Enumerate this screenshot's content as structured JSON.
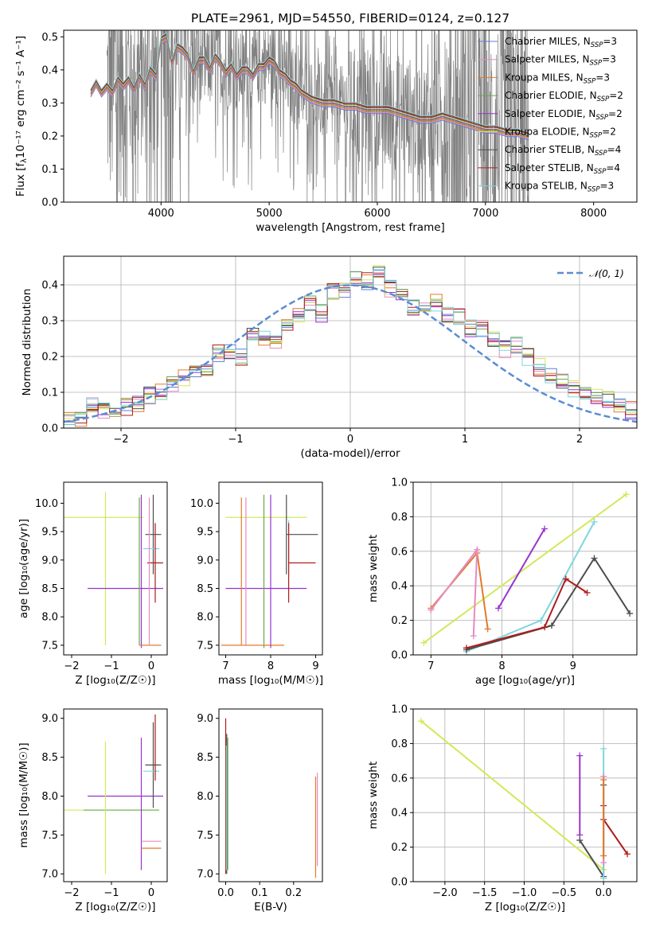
{
  "figure_title": "PLATE=2961, MJD=54550, FIBERID=0124, z=0.127",
  "colors": {
    "chabrier_miles": "#5b7fd6",
    "salpeter_miles": "#e78ac3",
    "kroupa_miles": "#e07b2c",
    "chabrier_elodie": "#6aa84f",
    "salpeter_elodie": "#9933cc",
    "kroupa_elodie": "#d4e85a",
    "chabrier_stelib": "#4d4d4d",
    "salpeter_stelib": "#b01c1c",
    "kroupa_stelib": "#7fd6dd",
    "spectrum": "#808080",
    "gaussian": "#5b8bd6"
  },
  "legend": [
    {
      "label": "Chabrier MILES, N",
      "sub": "SSP",
      "tail": "=3",
      "color_key": "chabrier_miles"
    },
    {
      "label": "Salpeter MILES, N",
      "sub": "SSP",
      "tail": "=3",
      "color_key": "salpeter_miles"
    },
    {
      "label": "Kroupa MILES, N",
      "sub": "SSP",
      "tail": "=3",
      "color_key": "kroupa_miles"
    },
    {
      "label": "Chabrier ELODIE, N",
      "sub": "SSP",
      "tail": "=2",
      "color_key": "chabrier_elodie"
    },
    {
      "label": "Salpeter ELODIE, N",
      "sub": "SSP",
      "tail": "=2",
      "color_key": "salpeter_elodie"
    },
    {
      "label": "Kroupa ELODIE, N",
      "sub": "SSP",
      "tail": "=2",
      "color_key": "kroupa_elodie"
    },
    {
      "label": "Chabrier STELIB, N",
      "sub": "SSP",
      "tail": "=4",
      "color_key": "chabrier_stelib"
    },
    {
      "label": "Salpeter STELIB, N",
      "sub": "SSP",
      "tail": "=4",
      "color_key": "salpeter_stelib"
    },
    {
      "label": "Kroupa STELIB, N",
      "sub": "SSP",
      "tail": "=3",
      "color_key": "kroupa_stelib"
    }
  ],
  "chart_data": [
    {
      "id": "spectrum",
      "type": "line",
      "xlabel": "wavelength [Angstrom, rest frame]",
      "ylabel": "Flux [f",
      "ylabel_sub": "λ",
      "ylabel_tail": "10⁻¹⁷ erg cm⁻² s⁻¹ A⁻¹]",
      "xlim": [
        3100,
        8400
      ],
      "ylim": [
        0,
        0.52
      ],
      "xticks": [
        4000,
        5000,
        6000,
        7000,
        8000
      ],
      "yticks": [
        0.0,
        0.1,
        0.2,
        0.3,
        0.4,
        0.5
      ],
      "grid": false,
      "legend_position": "top-right",
      "model_continuum": {
        "x": [
          3350,
          3400,
          3450,
          3500,
          3550,
          3600,
          3650,
          3700,
          3750,
          3800,
          3850,
          3900,
          3950,
          4000,
          4050,
          4100,
          4150,
          4200,
          4250,
          4300,
          4350,
          4400,
          4450,
          4500,
          4550,
          4600,
          4650,
          4700,
          4750,
          4800,
          4850,
          4900,
          4950,
          5000,
          5050,
          5100,
          5150,
          5200,
          5250,
          5300,
          5350,
          5400,
          5500,
          5600,
          5700,
          5800,
          5900,
          6000,
          6100,
          6200,
          6300,
          6400,
          6500,
          6600,
          6700,
          6800,
          6900,
          7000,
          7100,
          7200,
          7300,
          7400
        ],
        "y": [
          0.33,
          0.36,
          0.33,
          0.35,
          0.33,
          0.37,
          0.35,
          0.37,
          0.34,
          0.38,
          0.35,
          0.4,
          0.38,
          0.49,
          0.5,
          0.42,
          0.47,
          0.46,
          0.44,
          0.39,
          0.43,
          0.43,
          0.4,
          0.44,
          0.42,
          0.39,
          0.41,
          0.38,
          0.4,
          0.4,
          0.38,
          0.41,
          0.41,
          0.43,
          0.42,
          0.39,
          0.38,
          0.36,
          0.35,
          0.33,
          0.32,
          0.31,
          0.3,
          0.3,
          0.29,
          0.29,
          0.28,
          0.28,
          0.28,
          0.27,
          0.26,
          0.25,
          0.25,
          0.26,
          0.25,
          0.24,
          0.23,
          0.22,
          0.22,
          0.21,
          0.21,
          0.2
        ]
      }
    },
    {
      "id": "residuals",
      "type": "line",
      "xlabel": "(data-model)/error",
      "ylabel": "Normed distribution",
      "xlim": [
        -2.5,
        2.5
      ],
      "ylim": [
        0,
        0.48
      ],
      "xticks": [
        -2,
        -1,
        0,
        1,
        2
      ],
      "yticks": [
        0.0,
        0.1,
        0.2,
        0.3,
        0.4
      ],
      "grid": true,
      "legend": "𝒩(0, 1)",
      "legend_position": "top-right",
      "bin_width": 0.1,
      "bin_start": -2.5,
      "hist_base": [
        0.02,
        0.03,
        0.06,
        0.05,
        0.05,
        0.06,
        0.07,
        0.09,
        0.1,
        0.12,
        0.14,
        0.15,
        0.17,
        0.21,
        0.21,
        0.2,
        0.27,
        0.25,
        0.24,
        0.28,
        0.32,
        0.35,
        0.32,
        0.38,
        0.38,
        0.42,
        0.41,
        0.43,
        0.39,
        0.38,
        0.34,
        0.33,
        0.35,
        0.32,
        0.31,
        0.28,
        0.28,
        0.25,
        0.22,
        0.23,
        0.2,
        0.17,
        0.15,
        0.13,
        0.11,
        0.1,
        0.09,
        0.08,
        0.06,
        0.05
      ],
      "gaussian": {
        "mean": 0,
        "sigma": 1
      }
    },
    {
      "id": "age_vs_Z",
      "type": "scatter",
      "xlabel": "Z [log₁₀(Z/Z☉)]",
      "ylabel": "age  [log₁₀(age/yr)]",
      "xlim": [
        -2.2,
        0.4
      ],
      "ylim": [
        7.33,
        10.37
      ],
      "xticks": [
        -2,
        -1,
        0
      ],
      "yticks": [
        7.5,
        8.0,
        8.5,
        9.0,
        9.5,
        10.0
      ],
      "grid": false,
      "errorbars": [
        {
          "x": -0.2,
          "y": 9.75,
          "xerr": [
            2.0,
            0.0
          ],
          "yerr": [
            0.0,
            0.0
          ],
          "color_key": "kroupa_elodie"
        },
        {
          "x": -1.15,
          "y": 8.8,
          "xerr": [
            0.0,
            0.0
          ],
          "yerr": [
            1.3,
            1.4
          ],
          "color_key": "kroupa_elodie"
        },
        {
          "x": -0.6,
          "y": 8.5,
          "xerr": [
            1.0,
            0.9
          ],
          "yerr": [
            0.0,
            0.0
          ],
          "color_key": "salpeter_elodie"
        },
        {
          "x": -0.25,
          "y": 8.8,
          "xerr": [
            0.0,
            0.0
          ],
          "yerr": [
            1.35,
            1.35
          ],
          "color_key": "salpeter_elodie"
        },
        {
          "x": -0.3,
          "y": 8.8,
          "xerr": [
            0.0,
            0.0
          ],
          "yerr": [
            1.3,
            1.3
          ],
          "color_key": "chabrier_elodie"
        },
        {
          "x": 0.0,
          "y": 7.5,
          "xerr": [
            0.3,
            0.25
          ],
          "yerr": [
            0.0,
            0.0
          ],
          "color_key": "kroupa_miles"
        },
        {
          "x": 0.05,
          "y": 9.45,
          "xerr": [
            0.2,
            0.2
          ],
          "yerr": [
            0.7,
            0.7
          ],
          "color_key": "chabrier_stelib"
        },
        {
          "x": 0.0,
          "y": 9.2,
          "xerr": [
            0.2,
            0.2
          ],
          "yerr": [
            0.0,
            0.0
          ],
          "color_key": "kroupa_stelib"
        },
        {
          "x": 0.1,
          "y": 8.95,
          "xerr": [
            0.2,
            0.2
          ],
          "yerr": [
            0.7,
            0.7
          ],
          "color_key": "salpeter_stelib"
        },
        {
          "x": -0.05,
          "y": 8.8,
          "xerr": [
            0.0,
            0.0
          ],
          "yerr": [
            1.3,
            1.3
          ],
          "color_key": "salpeter_miles"
        }
      ]
    },
    {
      "id": "age_vs_mass",
      "type": "scatter",
      "xlabel": "mass [log₁₀(M/M☉)]",
      "ylabel": "",
      "xlim": [
        6.85,
        9.15
      ],
      "ylim": [
        7.33,
        10.37
      ],
      "xticks": [
        7,
        8,
        9
      ],
      "yticks": [
        7.5,
        8.0,
        8.5,
        9.0,
        9.5,
        10.0
      ],
      "grid": false,
      "errorbars": [
        {
          "x": 7.9,
          "y": 9.75,
          "xerr": [
            0.9,
            0.9
          ],
          "yerr": [
            0.0,
            0.0
          ],
          "color_key": "kroupa_elodie"
        },
        {
          "x": 7.9,
          "y": 8.5,
          "xerr": [
            0.9,
            0.9
          ],
          "yerr": [
            0.0,
            0.0
          ],
          "color_key": "salpeter_elodie"
        },
        {
          "x": 7.35,
          "y": 8.8,
          "xerr": [
            0.0,
            0.0
          ],
          "yerr": [
            1.3,
            1.3
          ],
          "color_key": "kroupa_miles"
        },
        {
          "x": 7.45,
          "y": 8.8,
          "xerr": [
            0.0,
            0.0
          ],
          "yerr": [
            1.3,
            1.3
          ],
          "color_key": "salpeter_miles"
        },
        {
          "x": 7.85,
          "y": 8.8,
          "xerr": [
            0.0,
            0.0
          ],
          "yerr": [
            1.35,
            1.35
          ],
          "color_key": "chabrier_elodie"
        },
        {
          "x": 7.8,
          "y": 7.5,
          "xerr": [
            0.9,
            0.5
          ],
          "yerr": [
            0.0,
            0.0
          ],
          "color_key": "kroupa_miles"
        },
        {
          "x": 8.0,
          "y": 8.8,
          "xerr": [
            0.0,
            0.0
          ],
          "yerr": [
            1.35,
            1.35
          ],
          "color_key": "salpeter_elodie"
        },
        {
          "x": 8.35,
          "y": 9.45,
          "xerr": [
            0.0,
            0.7
          ],
          "yerr": [
            0.7,
            0.7
          ],
          "color_key": "chabrier_stelib"
        },
        {
          "x": 8.4,
          "y": 9.2,
          "xerr": [
            0.0,
            0.0
          ],
          "yerr": [
            0.5,
            0.5
          ],
          "color_key": "kroupa_stelib"
        },
        {
          "x": 8.4,
          "y": 8.95,
          "xerr": [
            0.0,
            0.6
          ],
          "yerr": [
            0.7,
            0.7
          ],
          "color_key": "salpeter_stelib"
        }
      ]
    },
    {
      "id": "massweight_vs_age",
      "type": "line",
      "xlabel": "age  [log₁₀(age/yr)]",
      "ylabel": "mass weight",
      "xlim": [
        6.75,
        9.9
      ],
      "ylim": [
        0,
        1.0
      ],
      "xticks": [
        7,
        8,
        9
      ],
      "yticks": [
        0.0,
        0.2,
        0.4,
        0.6,
        0.8,
        1.0
      ],
      "grid": true,
      "series": [
        {
          "x": [
            6.9,
            9.75
          ],
          "y": [
            0.07,
            0.93
          ],
          "color_key": "kroupa_elodie"
        },
        {
          "x": [
            7.95,
            8.6
          ],
          "y": [
            0.27,
            0.73
          ],
          "color_key": "salpeter_elodie"
        },
        {
          "x": [
            7.0,
            7.65,
            7.8
          ],
          "y": [
            0.27,
            0.59,
            0.15
          ],
          "color_key": "kroupa_miles"
        },
        {
          "x": [
            7.0,
            7.65,
            7.6
          ],
          "y": [
            0.26,
            0.61,
            0.11
          ],
          "color_key": "salpeter_miles"
        },
        {
          "x": [
            7.5,
            8.55,
            9.3
          ],
          "y": [
            0.02,
            0.2,
            0.77
          ],
          "color_key": "kroupa_stelib"
        },
        {
          "x": [
            7.5,
            8.7,
            9.3,
            9.8
          ],
          "y": [
            0.03,
            0.17,
            0.56,
            0.24
          ],
          "color_key": "chabrier_stelib"
        },
        {
          "x": [
            7.5,
            8.6,
            8.9,
            9.2
          ],
          "y": [
            0.04,
            0.16,
            0.44,
            0.36
          ],
          "color_key": "salpeter_stelib"
        }
      ]
    },
    {
      "id": "mass_vs_Z",
      "type": "scatter",
      "xlabel": "Z [log₁₀(Z/Z☉)]",
      "ylabel": "mass [log₁₀(M/M☉)]",
      "xlim": [
        -2.2,
        0.4
      ],
      "ylim": [
        6.9,
        9.12
      ],
      "xticks": [
        -2,
        -1,
        0
      ],
      "yticks": [
        7.0,
        7.5,
        8.0,
        8.5,
        9.0
      ],
      "grid": false,
      "errorbars": [
        {
          "x": -0.6,
          "y": 8.0,
          "xerr": [
            1.0,
            0.9
          ],
          "yerr": [
            0.0,
            0.0
          ],
          "color_key": "salpeter_elodie"
        },
        {
          "x": -0.8,
          "y": 7.82,
          "xerr": [
            1.4,
            1.0
          ],
          "yerr": [
            0.0,
            0.0
          ],
          "color_key": "kroupa_elodie"
        },
        {
          "x": -0.7,
          "y": 7.82,
          "xerr": [
            1.0,
            0.9
          ],
          "yerr": [
            0.0,
            0.0
          ],
          "color_key": "chabrier_elodie"
        },
        {
          "x": -1.15,
          "y": 7.85,
          "xerr": [
            0.0,
            0.0
          ],
          "yerr": [
            0.85,
            0.85
          ],
          "color_key": "kroupa_elodie"
        },
        {
          "x": -0.25,
          "y": 7.9,
          "xerr": [
            0.0,
            0.0
          ],
          "yerr": [
            0.85,
            0.85
          ],
          "color_key": "salpeter_elodie"
        },
        {
          "x": 0.05,
          "y": 8.4,
          "xerr": [
            0.2,
            0.2
          ],
          "yerr": [
            0.55,
            0.55
          ],
          "color_key": "chabrier_stelib"
        },
        {
          "x": 0.0,
          "y": 8.32,
          "xerr": [
            0.2,
            0.2
          ],
          "yerr": [
            0.0,
            0.0
          ],
          "color_key": "kroupa_stelib"
        },
        {
          "x": 0.1,
          "y": 8.6,
          "xerr": [
            0.0,
            0.0
          ],
          "yerr": [
            0.4,
            0.45
          ],
          "color_key": "salpeter_stelib"
        },
        {
          "x": 0.0,
          "y": 7.42,
          "xerr": [
            0.25,
            0.25
          ],
          "yerr": [
            0.0,
            0.0
          ],
          "color_key": "salpeter_miles"
        },
        {
          "x": 0.0,
          "y": 7.33,
          "xerr": [
            0.25,
            0.25
          ],
          "yerr": [
            0.0,
            0.0
          ],
          "color_key": "kroupa_miles"
        }
      ]
    },
    {
      "id": "mass_vs_EBV",
      "type": "scatter",
      "xlabel": "E(B-V)",
      "ylabel": "",
      "xlim": [
        -0.02,
        0.285
      ],
      "ylim": [
        6.9,
        9.12
      ],
      "xticks": [
        0.0,
        0.1,
        0.2
      ],
      "yticks": [
        7.0,
        7.5,
        8.0,
        8.5,
        9.0
      ],
      "grid": false,
      "errorbars": [
        {
          "x": 0.0,
          "y": 8.0,
          "xerr": [
            0.0,
            0.0
          ],
          "yerr": [
            1.0,
            1.0
          ],
          "color_key": "salpeter_stelib"
        },
        {
          "x": 0.003,
          "y": 7.9,
          "xerr": [
            0.0,
            0.0
          ],
          "yerr": [
            0.9,
            0.9
          ],
          "color_key": "chabrier_stelib"
        },
        {
          "x": 0.006,
          "y": 7.9,
          "xerr": [
            0.0,
            0.0
          ],
          "yerr": [
            0.85,
            0.85
          ],
          "color_key": "chabrier_elodie"
        },
        {
          "x": 0.002,
          "y": 7.85,
          "xerr": [
            0.0,
            0.0
          ],
          "yerr": [
            0.8,
            0.8
          ],
          "color_key": "kroupa_stelib"
        },
        {
          "x": 0.265,
          "y": 7.6,
          "xerr": [
            0.0,
            0.0
          ],
          "yerr": [
            0.65,
            0.65
          ],
          "color_key": "kroupa_miles"
        },
        {
          "x": 0.27,
          "y": 7.7,
          "xerr": [
            0.0,
            0.0
          ],
          "yerr": [
            0.6,
            0.6
          ],
          "color_key": "salpeter_miles"
        }
      ]
    },
    {
      "id": "massweight_vs_Z",
      "type": "line",
      "xlabel": "Z [log₁₀(Z/Z☉)]",
      "ylabel": "mass weight",
      "xlim": [
        -2.4,
        0.42
      ],
      "ylim": [
        0,
        1.0
      ],
      "xticks": [
        -2.0,
        -1.5,
        -1.0,
        -0.5,
        0.0
      ],
      "yticks": [
        0.0,
        0.2,
        0.4,
        0.6,
        0.8,
        1.0
      ],
      "grid": true,
      "series": [
        {
          "x": [
            -2.3,
            0.0
          ],
          "y": [
            0.93,
            0.07
          ],
          "color_key": "kroupa_elodie"
        },
        {
          "x": [
            -0.3,
            -0.3
          ],
          "y": [
            0.27,
            0.73
          ],
          "color_key": "salpeter_elodie"
        },
        {
          "x": [
            -0.3,
            0.0,
            0.0
          ],
          "y": [
            0.24,
            0.03,
            0.56
          ],
          "color_key": "chabrier_stelib"
        },
        {
          "x": [
            0.0,
            0.0,
            0.3
          ],
          "y": [
            0.44,
            0.36,
            0.16
          ],
          "color_key": "salpeter_stelib"
        },
        {
          "x": [
            0.0,
            0.0
          ],
          "y": [
            0.02,
            0.77
          ],
          "color_key": "kroupa_stelib"
        },
        {
          "x": [
            0.0,
            0.0
          ],
          "y": [
            0.11,
            0.61
          ],
          "color_key": "salpeter_miles"
        },
        {
          "x": [
            0.0,
            0.0
          ],
          "y": [
            0.15,
            0.59
          ],
          "color_key": "kroupa_miles"
        }
      ]
    }
  ]
}
